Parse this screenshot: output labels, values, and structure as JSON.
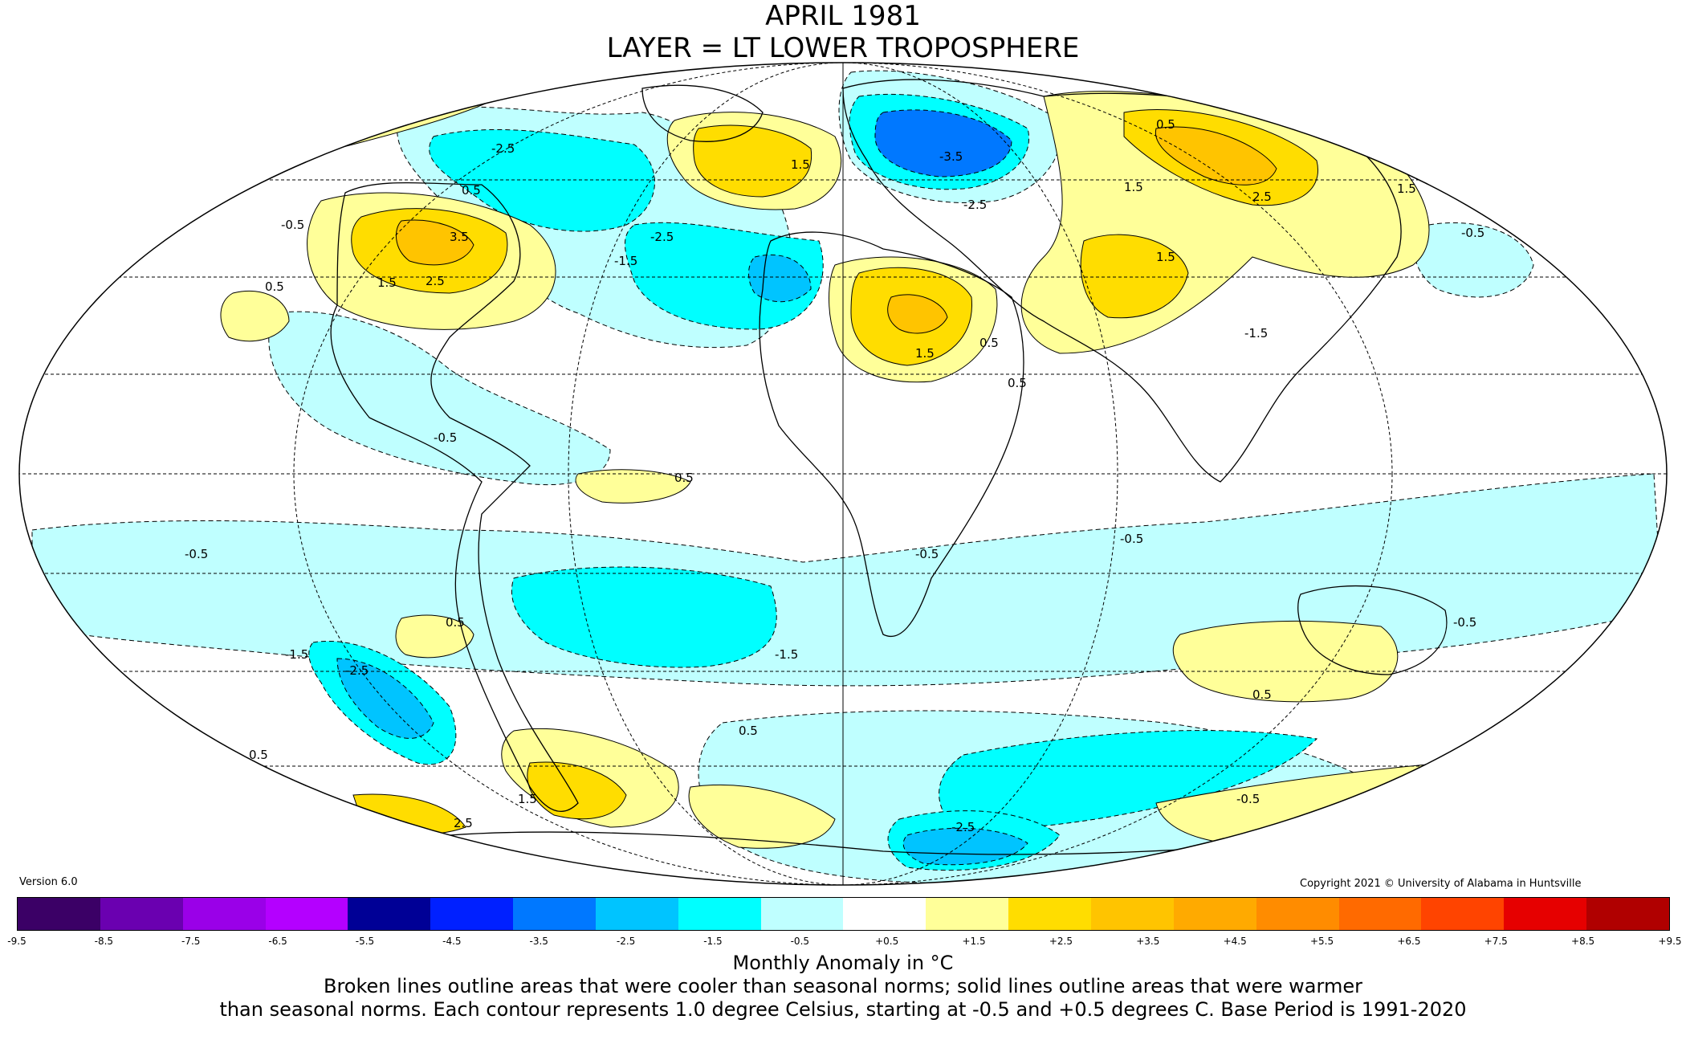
{
  "header": {
    "title_line1": "APRIL 1981",
    "title_line2": "LAYER = LT LOWER TROPOSPHERE"
  },
  "footer": {
    "version": "Version 6.0",
    "copyright": "Copyright 2021 © University of Alabama in Huntsville",
    "units_label": "Monthly Anomaly in °C",
    "caption_line1": "Broken lines outline areas that were cooler than seasonal norms; solid lines outline areas that were warmer",
    "caption_line2": "than seasonal norms. Each contour represents 1.0 degree Celsius, starting at -0.5 and +0.5 degrees C. Base Period is 1991-2020"
  },
  "colorbar": {
    "ticks": [
      "-9.5",
      "-8.5",
      "-7.5",
      "-6.5",
      "-5.5",
      "-4.5",
      "-3.5",
      "-2.5",
      "-1.5",
      "-0.5",
      "+0.5",
      "+1.5",
      "+2.5",
      "+3.5",
      "+4.5",
      "+5.5",
      "+6.5",
      "+7.5",
      "+8.5",
      "+9.5"
    ],
    "colors": [
      "#3b0066",
      "#6a00b0",
      "#9a00e8",
      "#b400ff",
      "#000096",
      "#0020ff",
      "#0078ff",
      "#00c4ff",
      "#00ffff",
      "#bfffff",
      "#ffffff",
      "#ffff99",
      "#ffdd00",
      "#ffc400",
      "#ffaa00",
      "#ff8c00",
      "#ff6a00",
      "#ff4400",
      "#e60000",
      "#b00000"
    ]
  },
  "contour_labels": [
    "-0.5",
    "-0.5",
    "-0.5",
    "-0.5",
    "-0.5",
    "-0.5",
    "-0.5",
    "-0.5",
    "-1.5",
    "-1.5",
    "-1.5",
    "-1.5",
    "-2.5",
    "-2.5",
    "-2.5",
    "-2.5",
    "-2.5",
    "-3.5",
    "0.5",
    "0.5",
    "0.5",
    "0.5",
    "0.5",
    "0.5",
    "0.5",
    "0.5",
    "0.5",
    "0.5",
    "1.5",
    "1.5",
    "1.5",
    "1.5",
    "1.5",
    "1.5",
    "1.5",
    "2.5",
    "2.5",
    "2.5",
    "3.5"
  ]
}
